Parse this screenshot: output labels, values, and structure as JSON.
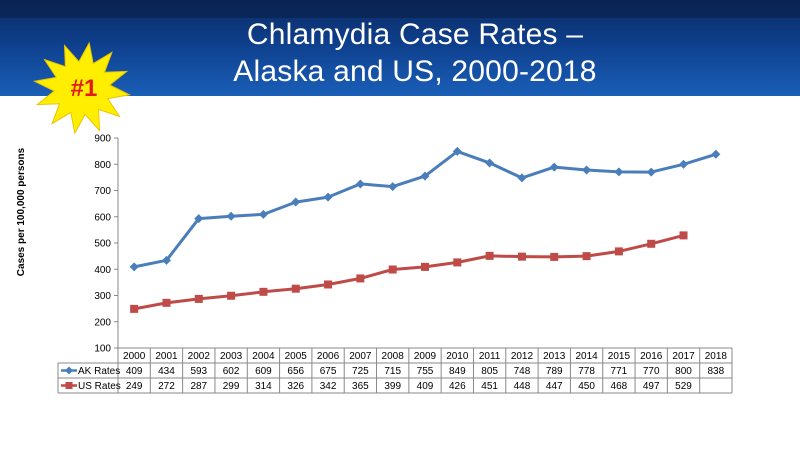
{
  "badge": {
    "text": "#1",
    "fill": "#ffee00",
    "text_color": "#e31b1b"
  },
  "chart_data": {
    "type": "line",
    "title_lines": [
      "Chlamydia Case Rates –",
      "Alaska and US, 2000-2018"
    ],
    "ylabel": "Cases per 100,000 persons",
    "ylim": [
      100,
      900
    ],
    "yticks": [
      100,
      200,
      300,
      400,
      500,
      600,
      700,
      800,
      900
    ],
    "categories": [
      "2000",
      "2001",
      "2002",
      "2003",
      "2004",
      "2005",
      "2006",
      "2007",
      "2008",
      "2009",
      "2010",
      "2011",
      "2012",
      "2013",
      "2014",
      "2015",
      "2016",
      "2017",
      "2018"
    ],
    "series": [
      {
        "name": "AK Rates",
        "color": "#4a7ebb",
        "marker": "diamond",
        "values": [
          409,
          434,
          593,
          602,
          609,
          656,
          675,
          725,
          715,
          755,
          849,
          805,
          748,
          789,
          778,
          771,
          770,
          800,
          838
        ]
      },
      {
        "name": "US Rates",
        "color": "#be4b48",
        "marker": "square",
        "values": [
          249,
          272,
          287,
          299,
          314,
          326,
          342,
          365,
          399,
          409,
          426,
          451,
          448,
          447,
          450,
          468,
          497,
          529,
          null
        ]
      }
    ],
    "data_table": true,
    "grid": false
  }
}
